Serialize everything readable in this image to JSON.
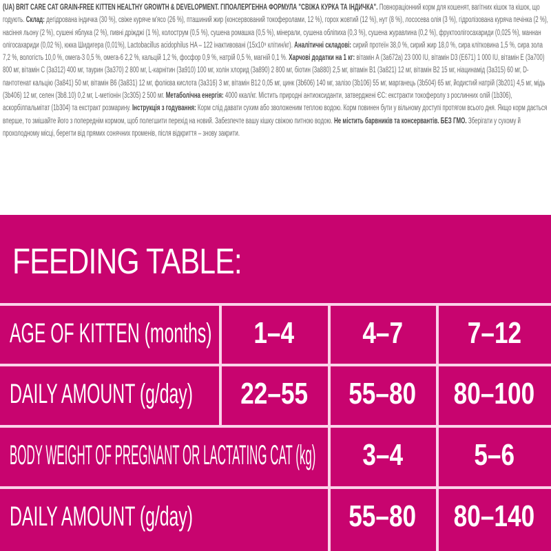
{
  "composition": {
    "intro_bold": "(UA) BRIT CARE CAT GRAIN-FREE KITTEN HEALTHY GROWTH & DEVELOPMENT. ГІПОАЛЕРГЕННА ФОРМУЛА \"СВІЖА КУРКА ТА ІНДИЧКА\".",
    "intro": " Повнораціонний корм для кошенят, вагітних кішок та кішок, що годують. ",
    "ingredients_label": "Склад:",
    "ingredients": " дегідрована індичка (30 %), свіже куряче м'ясо (26 %), пташиний жир (консервований токоферолами, 12 %), горох жовтий (12 %), нут (8 %), лососева олія (3 %), гідролізована куряча печінка (2 %), насіння льону (2 %), сушені яблука (2 %), пивні дріжджі (1 %), колострум (0,5 %), сушена ромашка (0,5 %), мінерали, сушена обліпиха (0,3 %), сушена журавлина (0,2 %), фруктоолігосахариди (0,025 %), маннан олігосахариди (0,02 %), юкка Шидигера (0,01%), Lactobacillus acidophilus HA – 122 інактивовані (15х10⁹ клітин/кг). ",
    "analytical_label": "Аналітичні складові:",
    "analytical": " сирий протеїн 38,0 %, сирий жир 18,0 %, сира клітковина 1,5 %, сира зола 7,2 %, вологість 10,0 %, омега-3 0,5 %, омега-6 2,2 %, кальцій 1,2 %, фосфор 0,9 %, натрій 0,5 %, магній 0,1 %. ",
    "additives_label": "Харчові додатки на 1 кг:",
    "additives": " вітамін А (3а672а) 23 000 IU, вітамін D3 (E671) 1 000 IU, вітамін Е (3а700) 800 мг, вітамін С (3а312) 400 мг, таурин (3а370) 2 800 мг, L-карнітин (3а910) 100 мг, холін хлорид (3а890) 2 800 мг, біотин (3а880) 2,5 мг, вітамін В1 (3а821) 12 мг, вітамін В2 15 мг, ніацинамід (3а315) 60 мг, D-пантотенат кальцію (3а841) 50 мг, вітамін В6 (3а831) 12 мг, фолієва кислота (3а316) 3 мг, вітамін В12 0,05 мг, цинк (3b606) 140 мг, залізо (3b106) 55 мг, марганець (3b504) 65 мг, йодистий натрій (3b201) 4,5 мг, мідь (3b406) 12 мг, селен (3b8.10) 0,2 мг, L-метіонін (3c305) 2 500 мг. ",
    "energy_label": "Метаболічна енергія:",
    "energy": " 4000 ккал/кг. Містить природні антиоксиданти, затверджені ЄС: екстракти токоферолу з рослинних олій (1b306), аскорбілпальмітат (1b304) та екстракт розмарину. ",
    "instructions_label": "Інструкція з годування:",
    "instructions": " Корм слід давати сухим або зволоженим теплою водою. Корм повинен бути у вільному доступі протягом всього дня. Якщо корм дається вперше, то змішайте його з попереднім кормом, щоб полегшити перехід на новий. Забезпечте вашу кішку свіжою питною водою. ",
    "free_from_label": "Не містить барвників та консервантів. БЕЗ ГМО.",
    "storage": " Зберігати у сухому й прохолодному місці, берегти від прямих сонячних променів, після відкриття – знову закрити."
  },
  "feeding_table": {
    "title": "FEEDING TABLE:",
    "accent_color": "#c8046f",
    "rows": [
      {
        "label": "AGE OF KITTEN",
        "unit": "(months)",
        "values": [
          "1–4",
          "4–7",
          "7–12"
        ]
      },
      {
        "label": "DAILY AMOUNT",
        "unit": "(g/day)",
        "values": [
          "22–55",
          "55–80",
          "80–100"
        ]
      },
      {
        "label": "BODY WEIGHT OF PREGNANT OR LACTATING CAT",
        "unit": "(kg)",
        "values": [
          "3–4",
          "5–6"
        ]
      },
      {
        "label": "DAILY AMOUNT",
        "unit": "(g/day)",
        "values": [
          "55–80",
          "80–140"
        ]
      }
    ]
  }
}
